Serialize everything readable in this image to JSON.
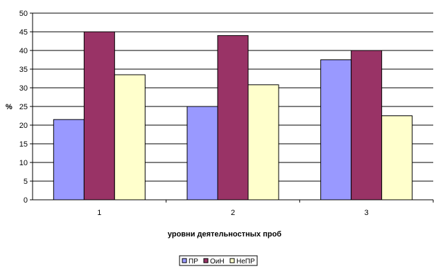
{
  "chart_data": {
    "type": "bar",
    "categories": [
      "1",
      "2",
      "3"
    ],
    "series": [
      {
        "name": "ПР",
        "values": [
          21.5,
          25,
          37.5
        ],
        "color": "#9999FF"
      },
      {
        "name": "ОиН",
        "values": [
          45,
          44,
          40
        ],
        "color": "#993366"
      },
      {
        "name": "НеПР",
        "values": [
          33.5,
          30.8,
          22.5
        ],
        "color": "#FFFFCC"
      }
    ],
    "ylim": [
      0,
      50
    ],
    "yticks": [
      0,
      5,
      10,
      15,
      20,
      25,
      30,
      35,
      40,
      45,
      50
    ],
    "xlabel": "уровни деятельностных проб",
    "ylabel": "%",
    "grid": true,
    "legend_position": "bottom"
  }
}
